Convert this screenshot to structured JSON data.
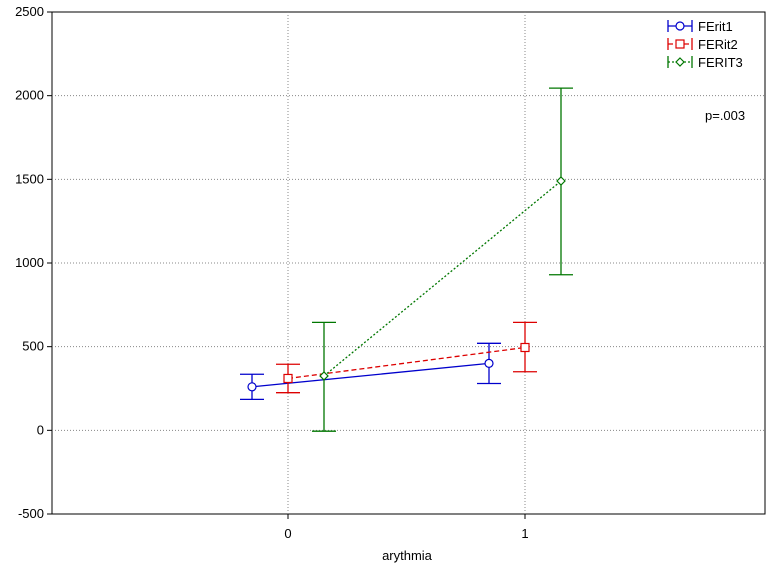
{
  "chart_data": {
    "type": "line",
    "xlabel": "arythmia",
    "ylabel": "",
    "categories": [
      "0",
      "1"
    ],
    "ylim": [
      -500,
      2500
    ],
    "yticks": [
      -500,
      0,
      500,
      1000,
      1500,
      2000,
      2500
    ],
    "grid": true,
    "legend_position": "top-right",
    "annotation": "p=.003",
    "series": [
      {
        "name": "FErit1",
        "color": "#0000cc",
        "line_style": "solid",
        "marker": "circle",
        "values": [
          260,
          400
        ],
        "lower": [
          185,
          280
        ],
        "upper": [
          335,
          520
        ]
      },
      {
        "name": "FERit2",
        "color": "#dd0000",
        "line_style": "dashed",
        "marker": "square",
        "values": [
          310,
          495
        ],
        "lower": [
          225,
          350
        ],
        "upper": [
          395,
          645
        ]
      },
      {
        "name": "FERIT3",
        "color": "#007700",
        "line_style": "dotted",
        "marker": "diamond",
        "values": [
          325,
          1490
        ],
        "lower": [
          -5,
          930
        ],
        "upper": [
          645,
          2045
        ]
      }
    ]
  }
}
